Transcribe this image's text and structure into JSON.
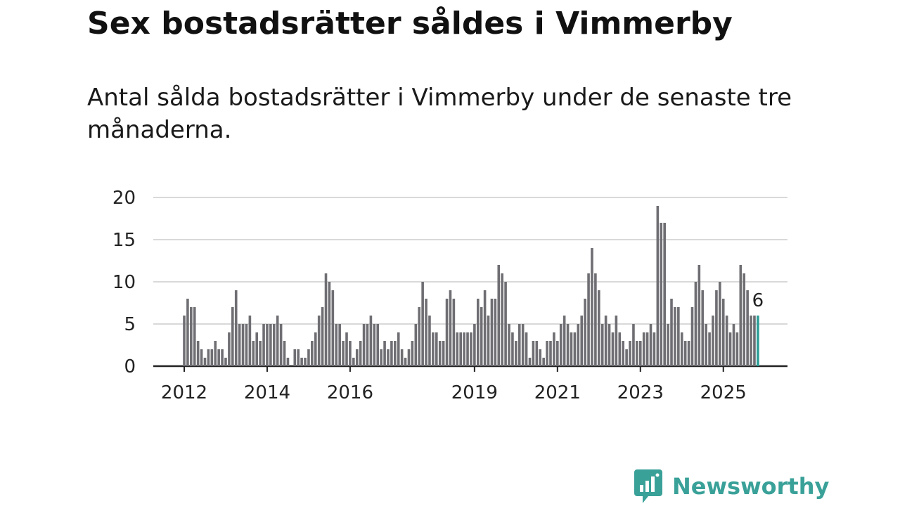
{
  "title": "Sex bostadsrätter såldes i Vimmerby",
  "subtitle": "Antal sålda bostadsrätter i Vimmerby under de senaste tre månaderna.",
  "brand": {
    "name": "Newsworthy",
    "color": "#3aa199",
    "icon": "bar-chart-bubble-icon"
  },
  "colors": {
    "bar": "#6f6e73",
    "highlight": "#2a9d96",
    "grid": "#d9d9d9",
    "axis": "#222222"
  },
  "chart_data": {
    "type": "bar",
    "title": "Sex bostadsrätter såldes i Vimmerby",
    "xlabel": "",
    "ylabel": "",
    "ylim": [
      0,
      20
    ],
    "yticks": [
      0,
      5,
      10,
      15,
      20
    ],
    "grid": true,
    "x_tick_labels": [
      "2012",
      "2014",
      "2016",
      "2019",
      "2021",
      "2023",
      "2025"
    ],
    "x_tick_label_indices": [
      0,
      24,
      48,
      84,
      108,
      132,
      156
    ],
    "start": "2012-01",
    "frequency": "monthly",
    "highlight_index": 166,
    "highlight_label": "6",
    "values": [
      6,
      8,
      7,
      7,
      3,
      2,
      1,
      2,
      2,
      3,
      2,
      2,
      1,
      4,
      7,
      9,
      5,
      5,
      5,
      6,
      3,
      4,
      3,
      5,
      5,
      5,
      5,
      6,
      5,
      3,
      1,
      0,
      2,
      2,
      1,
      1,
      2,
      3,
      4,
      6,
      7,
      11,
      10,
      9,
      5,
      5,
      3,
      4,
      3,
      1,
      2,
      3,
      5,
      5,
      6,
      5,
      5,
      2,
      3,
      2,
      3,
      3,
      4,
      2,
      1,
      2,
      3,
      5,
      7,
      10,
      8,
      6,
      4,
      4,
      3,
      3,
      8,
      9,
      8,
      4,
      4,
      4,
      4,
      4,
      5,
      8,
      7,
      9,
      6,
      8,
      8,
      12,
      11,
      10,
      5,
      4,
      3,
      5,
      5,
      4,
      1,
      3,
      3,
      2,
      1,
      3,
      3,
      4,
      3,
      5,
      6,
      5,
      4,
      4,
      5,
      6,
      8,
      11,
      14,
      11,
      9,
      5,
      6,
      5,
      4,
      6,
      4,
      3,
      2,
      3,
      5,
      3,
      3,
      4,
      4,
      5,
      4,
      19,
      17,
      17,
      5,
      8,
      7,
      7,
      4,
      3,
      3,
      7,
      10,
      12,
      9,
      5,
      4,
      6,
      9,
      10,
      8,
      6,
      4,
      5,
      4,
      12,
      11,
      9,
      6,
      6,
      6
    ]
  }
}
